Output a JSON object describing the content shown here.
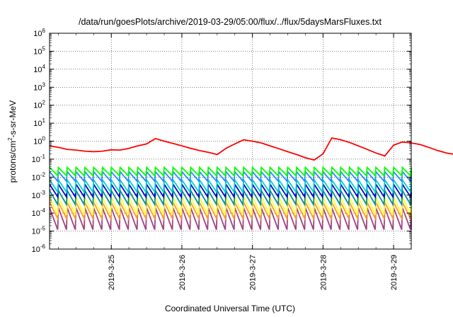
{
  "chart_data": {
    "type": "line",
    "title": "/data/run/goesPlots/archive/2019-03-29/05:00/flux/../flux/5daysMarsFluxes.txt",
    "xlabel": "Coordinated Universal Time (UTC)",
    "ylabel": {
      "base": "protons/cm",
      "sup": "2",
      "rest": "-s-sr-MeV"
    },
    "y_scale": "log",
    "ylim_exp": [
      -6,
      6
    ],
    "y_ticks": [
      {
        "base": "10",
        "exp": "-6"
      },
      {
        "base": "10",
        "exp": "-5"
      },
      {
        "base": "10",
        "exp": "-4"
      },
      {
        "base": "10",
        "exp": "-3"
      },
      {
        "base": "10",
        "exp": "-2"
      },
      {
        "base": "10",
        "exp": "-1"
      },
      {
        "base": "10",
        "exp": "0"
      },
      {
        "base": "10",
        "exp": "1"
      },
      {
        "base": "10",
        "exp": "2"
      },
      {
        "base": "10",
        "exp": "3"
      },
      {
        "base": "10",
        "exp": "4"
      },
      {
        "base": "10",
        "exp": "5"
      },
      {
        "base": "10",
        "exp": "6"
      }
    ],
    "x_range": [
      "2019-03-24T03:00",
      "2019-03-29T06:00"
    ],
    "x_ticks": [
      "2019-3-25",
      "2019-3-26",
      "2019-3-27",
      "2019-3-28",
      "2019-3-29"
    ],
    "grid": true,
    "grid_style": "dotted",
    "series": [
      {
        "color": "#ff0000",
        "cycle_hours": 3,
        "profile": "sawtooth",
        "values": [
          0.55,
          0.45,
          0.35,
          0.32,
          0.28,
          0.26,
          0.28,
          0.33,
          0.32,
          0.4,
          0.55,
          0.7,
          1.4,
          1.0,
          0.75,
          0.55,
          0.4,
          0.3,
          0.24,
          0.18,
          0.4,
          0.7,
          1.2,
          1.0,
          0.8,
          0.55,
          0.38,
          0.26,
          0.18,
          0.12,
          0.09,
          0.2,
          1.5,
          1.2,
          0.85,
          0.55,
          0.35,
          0.22,
          0.15,
          0.6,
          0.9,
          0.8,
          0.65,
          0.45,
          0.3,
          0.22,
          0.18,
          0.4,
          0.9,
          0.8,
          0.65,
          0.5
        ]
      },
      {
        "color": "#00ff00",
        "cycle_hours": 3,
        "profile": "sawtooth",
        "high": 0.035,
        "low": 0.012
      },
      {
        "color": "#2288ff",
        "cycle_hours": 3,
        "profile": "sawtooth",
        "high": 0.02,
        "low": 0.006
      },
      {
        "color": "#00d0d0",
        "cycle_hours": 3,
        "profile": "sawtooth",
        "high": 0.007,
        "low": 0.0015
      },
      {
        "color": "#0000cc",
        "cycle_hours": 3,
        "profile": "sawtooth",
        "high": 0.004,
        "low": 0.0008
      },
      {
        "color": "#009090",
        "cycle_hours": 3,
        "profile": "sawtooth",
        "high": 0.0018,
        "low": 0.0003
      },
      {
        "color": "#ffff33",
        "cycle_hours": 3,
        "profile": "sawtooth",
        "high": 0.0008,
        "low": 8e-05
      },
      {
        "color": "#ff9933",
        "cycle_hours": 3,
        "profile": "sawtooth",
        "high": 0.0004,
        "low": 5e-05
      },
      {
        "color": "#a04080",
        "cycle_hours": 3,
        "profile": "sawtooth",
        "high": 0.0002,
        "low": 1.2e-05
      }
    ]
  }
}
